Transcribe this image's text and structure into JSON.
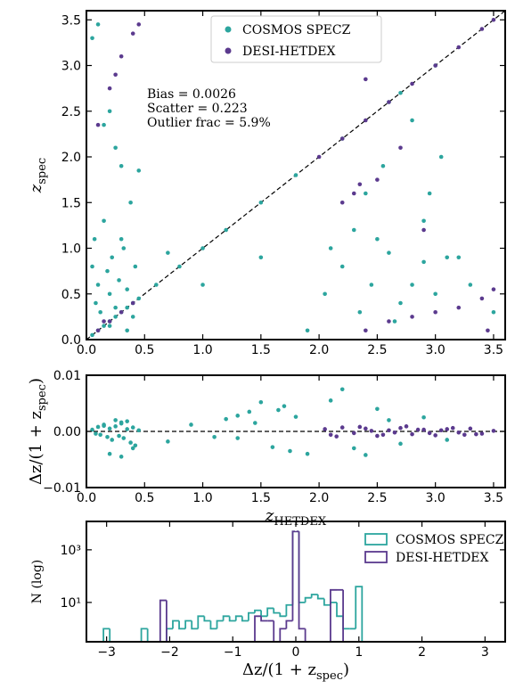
{
  "chart_data": [
    {
      "type": "scatter",
      "ylabel": {
        "text": "z",
        "sub": "spec"
      },
      "xlim": [
        0,
        3.6
      ],
      "ylim": [
        0,
        3.6
      ],
      "xticks": [
        {
          "value": 0,
          "label": "0.0"
        },
        0.5,
        {
          "value": 1,
          "label": "1.0"
        },
        1.5,
        {
          "value": 2,
          "label": "2.0"
        },
        2.5,
        {
          "value": 3,
          "label": "3.0"
        },
        3.5
      ],
      "yticks": [
        {
          "value": 0,
          "label": "0.0"
        },
        0.5,
        {
          "value": 1,
          "label": "1.0"
        },
        1.5,
        {
          "value": 2,
          "label": "2.0"
        },
        2.5,
        {
          "value": 3,
          "label": "3.0"
        },
        3.5
      ],
      "annotations": [
        "Bias = 0.0026",
        "Scatter = 0.223",
        "Outlier frac = 5.9%"
      ],
      "legend": "upper center",
      "series": [
        {
          "name": "COSMOS SPECZ",
          "color": "#2ca59e",
          "x": [
            0.05,
            0.1,
            0.15,
            0.2,
            0.25,
            0.3,
            0.35,
            0.4,
            0.45,
            0.6,
            0.8,
            1.0,
            1.2,
            1.5,
            1.8,
            2.2,
            2.6,
            2.7,
            3.0,
            0.05,
            0.08,
            0.1,
            0.12,
            0.15,
            0.18,
            0.2,
            0.22,
            0.25,
            0.28,
            0.3,
            0.32,
            0.35,
            0.38,
            0.4,
            0.42,
            0.45,
            0.05,
            0.1,
            0.15,
            0.2,
            0.25,
            0.3,
            0.07,
            0.2,
            0.35,
            2.05,
            2.1,
            2.2,
            2.3,
            2.35,
            2.4,
            2.45,
            2.5,
            2.6,
            2.7,
            2.8,
            2.9,
            3.0,
            3.1,
            3.2,
            3.3,
            3.5,
            2.55,
            2.9,
            2.95,
            0.7,
            1.0,
            1.5,
            2.8,
            3.05,
            1.9,
            2.65
          ],
          "y": [
            0.05,
            0.1,
            0.15,
            0.2,
            0.25,
            0.3,
            0.35,
            0.4,
            0.45,
            0.6,
            0.8,
            1.0,
            1.2,
            1.5,
            1.8,
            2.2,
            2.6,
            2.7,
            3.0,
            0.8,
            0.4,
            0.6,
            0.3,
            1.3,
            0.75,
            0.5,
            0.9,
            0.35,
            0.65,
            1.9,
            1.0,
            0.55,
            1.5,
            0.25,
            0.8,
            1.85,
            3.3,
            3.45,
            2.35,
            2.5,
            2.1,
            1.1,
            1.1,
            0.15,
            0.1,
            0.5,
            1.0,
            0.8,
            1.2,
            0.3,
            1.6,
            0.6,
            1.1,
            0.95,
            0.4,
            0.6,
            0.85,
            0.5,
            0.9,
            0.9,
            0.6,
            0.3,
            1.9,
            1.3,
            1.6,
            0.95,
            0.6,
            0.9,
            2.4,
            2.0,
            0.1,
            0.2
          ]
        },
        {
          "name": "DESI-HETDEX",
          "color": "#5b3a8e",
          "x": [
            0.1,
            0.2,
            0.3,
            0.4,
            2.0,
            2.2,
            2.4,
            2.6,
            2.8,
            3.0,
            3.2,
            3.4,
            3.5,
            0.1,
            0.2,
            0.3,
            0.4,
            0.45,
            0.25,
            2.4,
            2.6,
            2.8,
            3.0,
            3.2,
            3.4,
            3.5,
            2.4,
            2.3,
            2.35,
            2.2,
            2.5,
            2.7,
            2.9,
            3.45,
            0.15
          ],
          "y": [
            0.1,
            0.2,
            0.3,
            0.4,
            2.0,
            2.2,
            2.4,
            2.6,
            2.8,
            3.0,
            3.2,
            3.4,
            3.5,
            2.35,
            2.75,
            3.1,
            3.35,
            3.45,
            2.9,
            0.1,
            0.2,
            0.25,
            0.3,
            0.35,
            0.45,
            0.55,
            2.85,
            1.6,
            1.7,
            1.5,
            1.75,
            2.1,
            1.2,
            0.1,
            0.2
          ]
        }
      ]
    },
    {
      "type": "scatter",
      "xlabel": {
        "text": "z",
        "sub": "HETDEX"
      },
      "ylabel": {
        "text": "Δz/(1 + z",
        "sub": "spec",
        "tail": ")"
      },
      "xlim": [
        0,
        3.6
      ],
      "ylim": [
        -0.01,
        0.01
      ],
      "xticks": [
        {
          "value": 0,
          "label": "0.0"
        },
        0.5,
        {
          "value": 1,
          "label": "1.0"
        },
        1.5,
        {
          "value": 2,
          "label": "2.0"
        },
        2.5,
        {
          "value": 3,
          "label": "3.0"
        },
        3.5
      ],
      "yticks": [
        {
          "value": -0.01,
          "label": "−0.01"
        },
        {
          "value": 0,
          "label": "0.00"
        },
        0.01
      ],
      "series": [
        {
          "name": "COSMOS SPECZ",
          "color": "#2ca59e",
          "x": [
            0.05,
            0.08,
            0.1,
            0.12,
            0.15,
            0.18,
            0.2,
            0.22,
            0.25,
            0.28,
            0.3,
            0.32,
            0.35,
            0.38,
            0.4,
            0.42,
            0.45,
            0.2,
            0.25,
            0.3,
            0.35,
            0.4,
            0.15,
            0.3,
            0.7,
            0.9,
            1.1,
            1.2,
            1.3,
            1.4,
            1.5,
            1.6,
            1.7,
            1.8,
            1.9,
            1.45,
            1.65,
            1.75,
            1.3,
            2.1,
            2.3,
            2.5,
            2.7,
            2.9,
            3.1,
            2.2,
            2.6,
            2.4
          ],
          "y": [
            0.0003,
            -0.0004,
            0.0008,
            -0.0006,
            0.0012,
            -0.001,
            0.0005,
            -0.0015,
            0.0009,
            -0.0008,
            0.0014,
            -0.0012,
            0.0004,
            -0.002,
            0.0007,
            -0.0025,
            0.0002,
            -0.004,
            0.002,
            -0.0045,
            0.0018,
            -0.003,
            0.001,
            0.0016,
            -0.0018,
            0.0012,
            -0.001,
            0.0022,
            -0.0012,
            0.0035,
            0.0052,
            -0.0028,
            0.0045,
            0.0026,
            -0.004,
            0.0015,
            0.0038,
            -0.0035,
            0.0028,
            0.0055,
            -0.003,
            0.004,
            -0.0022,
            0.0025,
            -0.0015,
            0.0075,
            0.002,
            -0.0042
          ]
        },
        {
          "name": "DESI-HETDEX",
          "color": "#5b3a8e",
          "x": [
            2.05,
            2.1,
            2.2,
            2.3,
            2.4,
            2.5,
            2.6,
            2.7,
            2.8,
            2.9,
            3.0,
            3.1,
            3.2,
            3.3,
            3.4,
            3.5,
            2.15,
            2.35,
            2.55,
            2.75,
            2.95,
            3.15,
            3.35,
            2.45,
            2.65,
            2.85,
            3.05,
            3.25
          ],
          "y": [
            0.0004,
            -0.0006,
            0.0007,
            -0.0003,
            0.0005,
            -0.0008,
            0.0002,
            0.0006,
            -0.0005,
            0.0003,
            -0.0007,
            0.0004,
            -0.0002,
            0.0005,
            -0.0004,
            0.0001,
            -0.0009,
            0.0008,
            -0.0006,
            0.0009,
            -0.0003,
            0.0006,
            -0.0005,
            0.0001,
            -0.0002,
            0.0003,
            0.0002,
            -0.0006
          ]
        }
      ]
    },
    {
      "type": "histogram",
      "xlabel": {
        "text": "Δz/(1 + z",
        "sub": "spec",
        "tail": ")"
      },
      "ylabel": "N (log)",
      "log_y": true,
      "xlim": [
        -3.32,
        3.32
      ],
      "ylim": [
        0.32,
        12000
      ],
      "xticks": [
        {
          "value": -3,
          "label": "−3"
        },
        {
          "value": -2,
          "label": "−2"
        },
        {
          "value": -1,
          "label": "−1"
        },
        0,
        1,
        2,
        3
      ],
      "yticks": [
        {
          "value": 10,
          "label": "10¹"
        },
        {
          "value": 1000,
          "label": "10³"
        }
      ],
      "legend": "upper right",
      "bins": [
        -3.05,
        -2.95,
        -2.85,
        -2.75,
        -2.65,
        -2.55,
        -2.45,
        -2.35,
        -2.25,
        -2.15,
        -2.05,
        -1.95,
        -1.85,
        -1.75,
        -1.65,
        -1.55,
        -1.45,
        -1.35,
        -1.25,
        -1.15,
        -1.05,
        -0.95,
        -0.85,
        -0.75,
        -0.65,
        -0.55,
        -0.45,
        -0.35,
        -0.25,
        -0.15,
        -0.05,
        0.05,
        0.15,
        0.25,
        0.35,
        0.45,
        0.55,
        0.65,
        0.75,
        0.85,
        0.95,
        1.05
      ],
      "series": [
        {
          "name": "COSMOS SPECZ",
          "color": "#2ca59e",
          "values": [
            1,
            0,
            0,
            0,
            0,
            0,
            1,
            0,
            0,
            0,
            1,
            2,
            1,
            2,
            1,
            3,
            2,
            1,
            2,
            3,
            2,
            3,
            2,
            4,
            5,
            3,
            6,
            4,
            3,
            8,
            5000,
            10,
            15,
            20,
            14,
            8,
            10,
            3,
            1,
            1,
            40
          ]
        },
        {
          "name": "DESI-HETDEX",
          "color": "#5b3a8e",
          "values": [
            0,
            0,
            0,
            0,
            0,
            0,
            0,
            0,
            0,
            12,
            0,
            0,
            0,
            0,
            0,
            0,
            0,
            0,
            0,
            0,
            0,
            0,
            0,
            0,
            3,
            2,
            2,
            0,
            1,
            2,
            5000,
            1,
            0,
            0,
            0,
            0,
            30,
            30,
            0,
            0,
            0
          ]
        }
      ]
    }
  ]
}
